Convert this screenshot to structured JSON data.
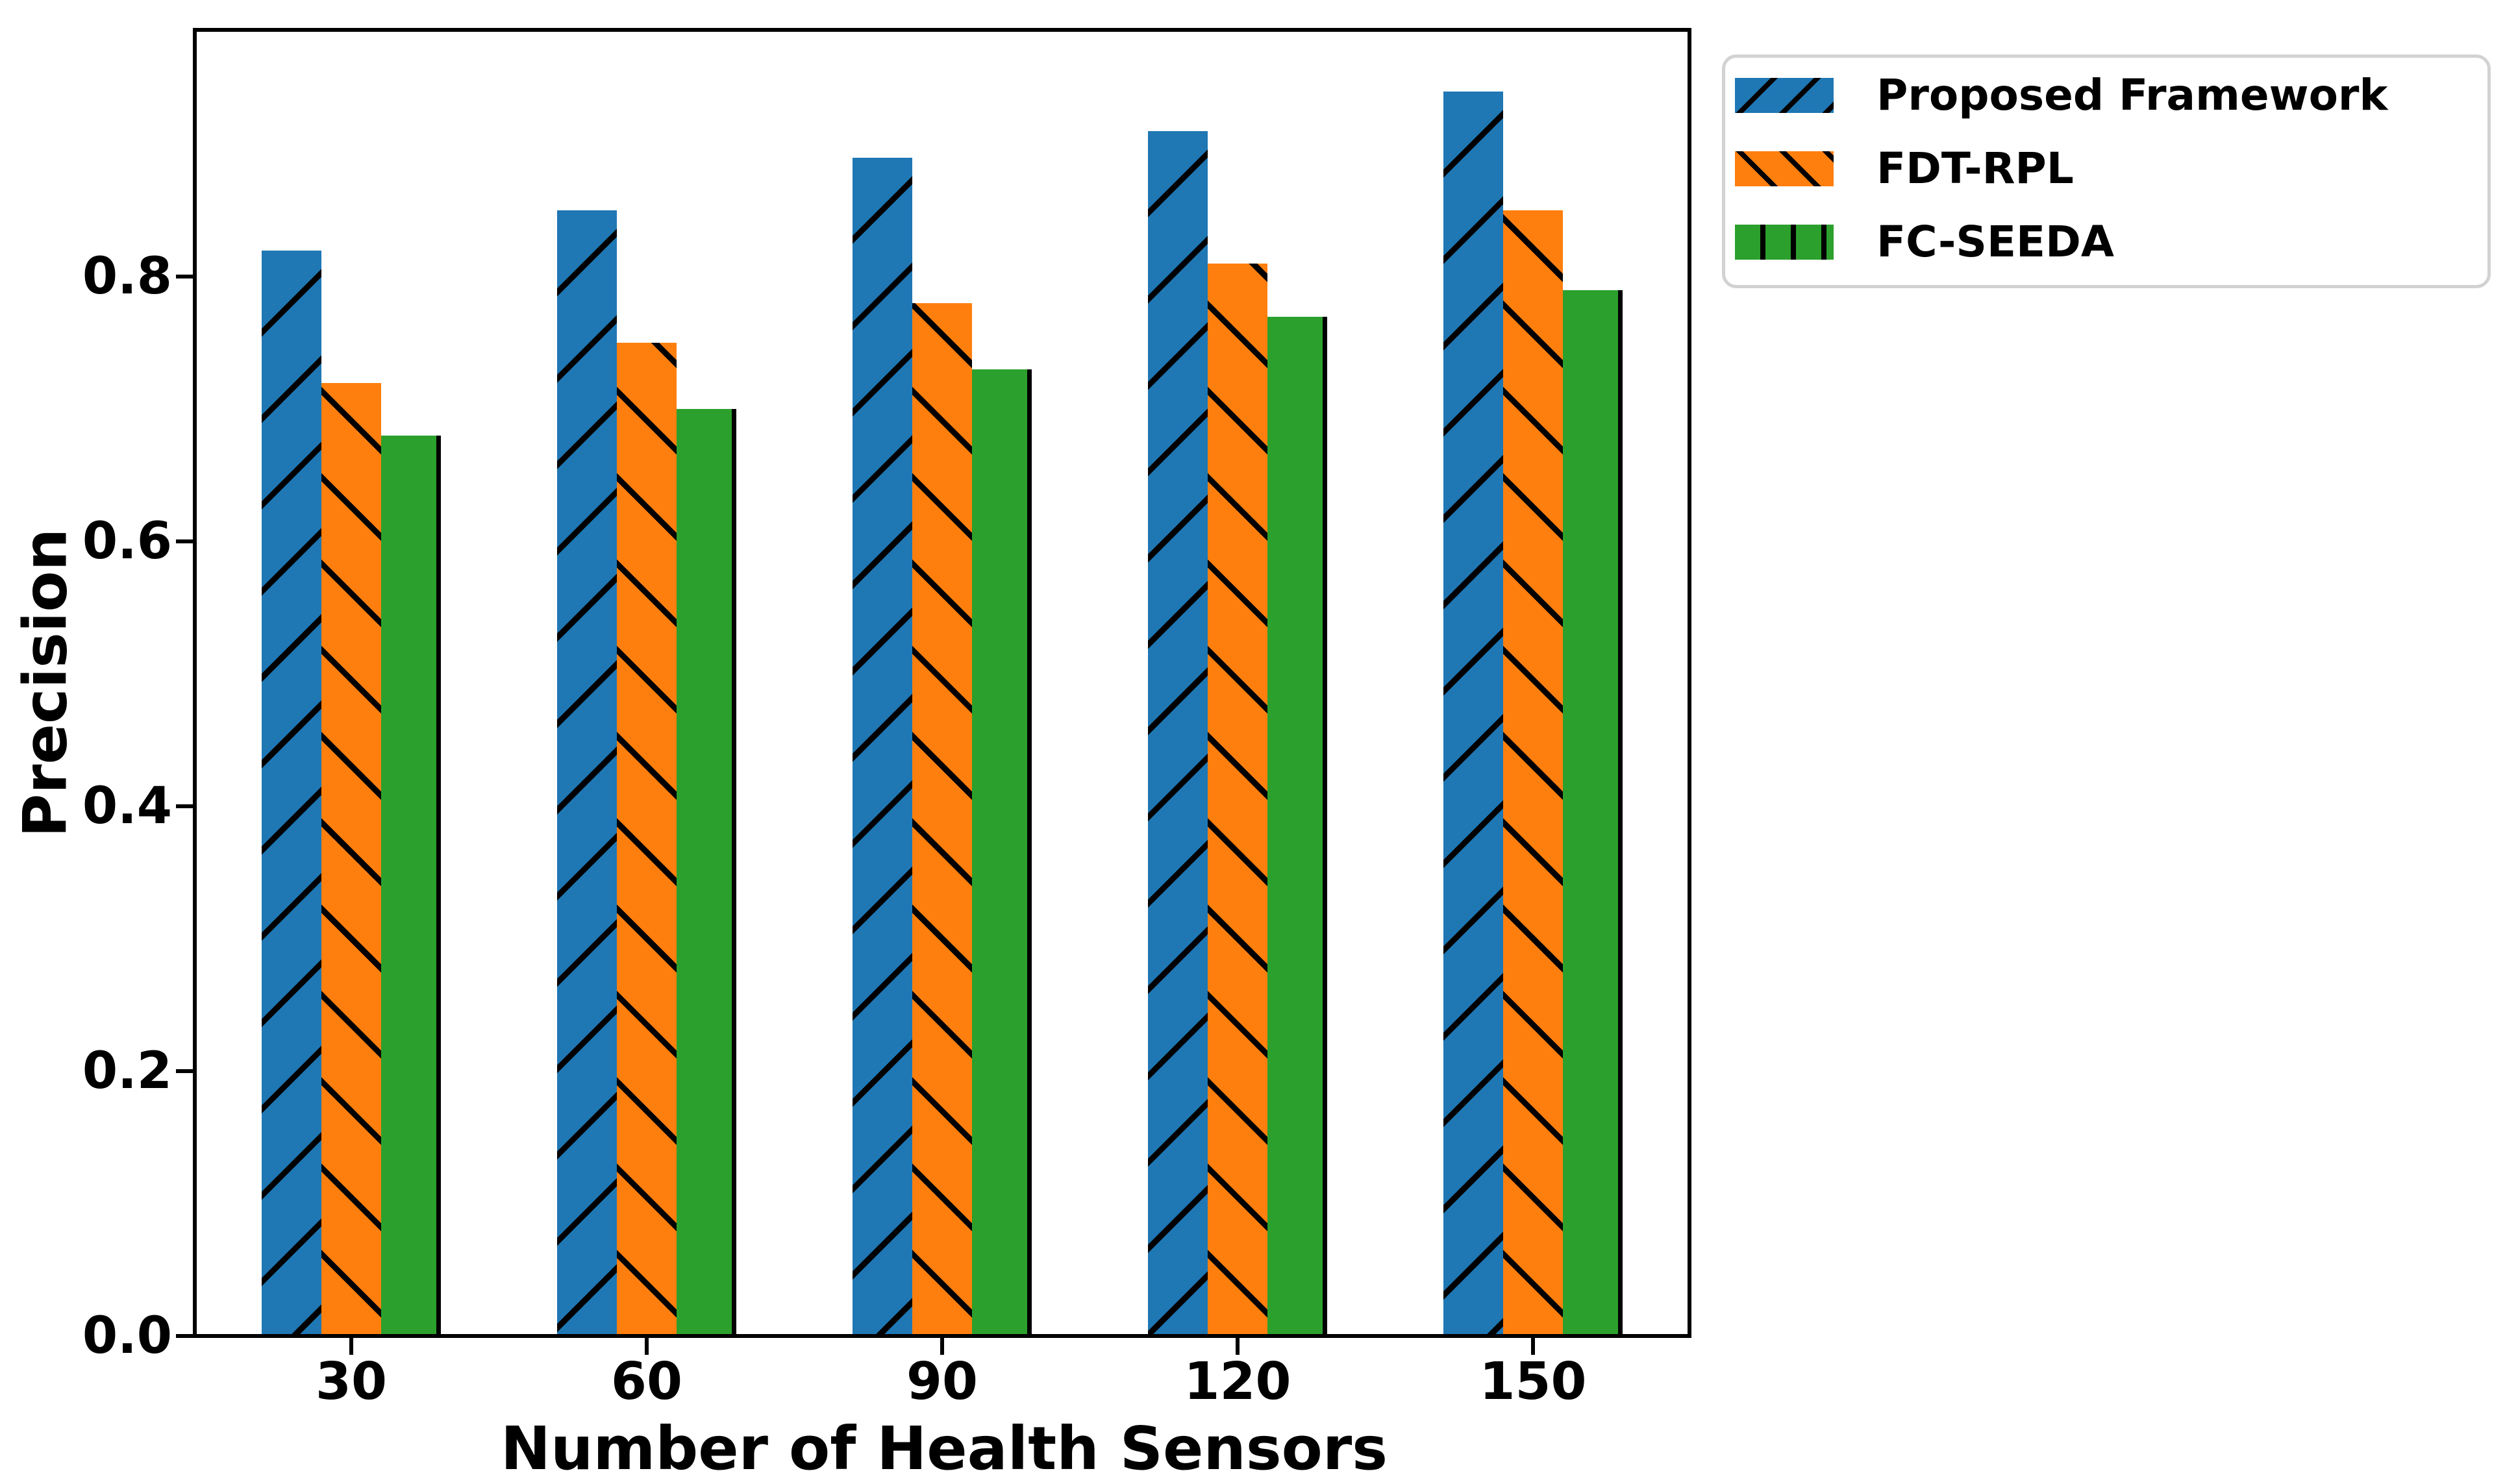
{
  "chart_data": {
    "type": "bar",
    "title": "",
    "xlabel": "Number of Health Sensors",
    "ylabel": "Precision",
    "categories": [
      "30",
      "60",
      "90",
      "120",
      "150"
    ],
    "series": [
      {
        "name": "Proposed Framework",
        "color": "#1f77b4",
        "hatch": "/",
        "values": [
          0.82,
          0.85,
          0.89,
          0.91,
          0.94
        ]
      },
      {
        "name": "FDT-RPL",
        "color": "#ff7f0e",
        "hatch": "\\",
        "values": [
          0.72,
          0.75,
          0.78,
          0.81,
          0.85
        ]
      },
      {
        "name": "FC-SEEDA",
        "color": "#2ca02c",
        "hatch": "|",
        "values": [
          0.68,
          0.7,
          0.73,
          0.77,
          0.79
        ]
      }
    ],
    "yticks": [
      "0.0",
      "0.2",
      "0.4",
      "0.6",
      "0.8"
    ],
    "ytick_values": [
      0.0,
      0.2,
      0.4,
      0.6,
      0.8
    ],
    "ylim": [
      0,
      0.9865
    ],
    "grid": false,
    "hatch_color": "#000000",
    "legend_position": "outside-top-right",
    "legend_border_color": "#d2d2d2",
    "background_color": "#ffffff",
    "axis_color": "#000000"
  }
}
